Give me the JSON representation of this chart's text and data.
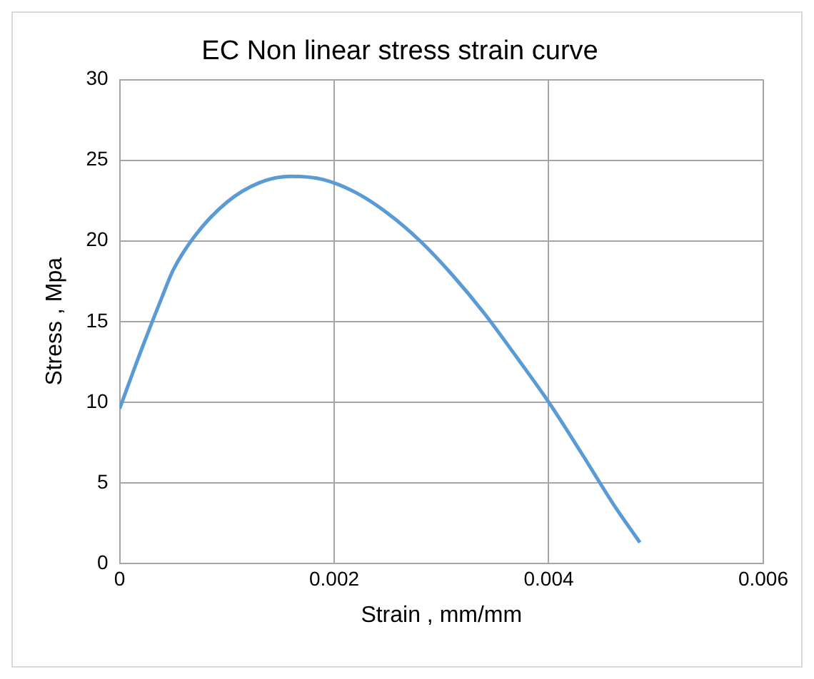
{
  "chart_data": {
    "type": "line",
    "title": "EC Non linear stress strain curve",
    "xlabel": "Strain , mm/mm",
    "ylabel": "Stress , Mpa",
    "x": [
      0,
      0.0002,
      0.0004,
      0.0005,
      0.0007,
      0.001,
      0.0013,
      0.0016,
      0.0019,
      0.0022,
      0.0025,
      0.0028,
      0.0031,
      0.0034,
      0.0037,
      0.004,
      0.0043,
      0.0046,
      0.00485
    ],
    "series": [
      {
        "color": "#5b9bd5",
        "values": [
          9.6,
          13.2,
          16.6,
          18.2,
          20.3,
          22.4,
          23.6,
          24,
          23.8,
          23,
          21.7,
          20,
          17.9,
          15.5,
          12.8,
          10,
          6.9,
          3.7,
          1.3
        ]
      }
    ],
    "xlim": [
      0,
      0.006
    ],
    "xticks": [
      0,
      0.002,
      0.004,
      0.006
    ],
    "ylim": [
      0,
      30
    ],
    "yticks": [
      0,
      5,
      10,
      15,
      20,
      25,
      30
    ],
    "grid": true,
    "legend": false,
    "marker": "none",
    "line_style": "solid"
  }
}
